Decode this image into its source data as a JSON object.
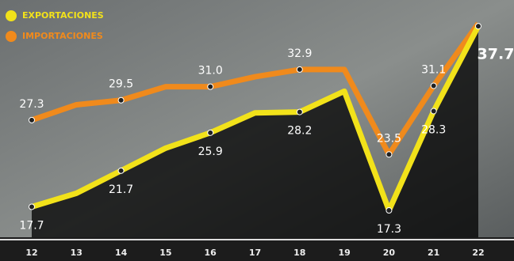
{
  "chart_data": {
    "type": "line",
    "categories": [
      "12",
      "13",
      "14",
      "15",
      "16",
      "17",
      "18",
      "19",
      "20",
      "21",
      "22"
    ],
    "series": [
      {
        "name": "EXPORTACIONES",
        "color": "#f2e21a",
        "values": [
          17.7,
          19.2,
          21.7,
          24.2,
          25.9,
          28.1,
          28.2,
          30.5,
          17.3,
          28.3,
          37.7
        ],
        "value_labels": [
          "17.7",
          null,
          "21.7",
          null,
          "25.9",
          null,
          "28.2",
          null,
          "17.3",
          "28.3",
          "37.7"
        ]
      },
      {
        "name": "IMPORTACIONES",
        "color": "#f08a1c",
        "values": [
          27.3,
          29.0,
          29.5,
          31.0,
          31.0,
          32.1,
          32.9,
          32.9,
          23.5,
          31.1,
          38.0
        ],
        "value_labels": [
          "27.3",
          null,
          "29.5",
          null,
          "31.0",
          null,
          "32.9",
          null,
          "23.5",
          "31.1",
          null
        ]
      }
    ],
    "ylim": [
      11.7,
      40.6
    ]
  }
}
